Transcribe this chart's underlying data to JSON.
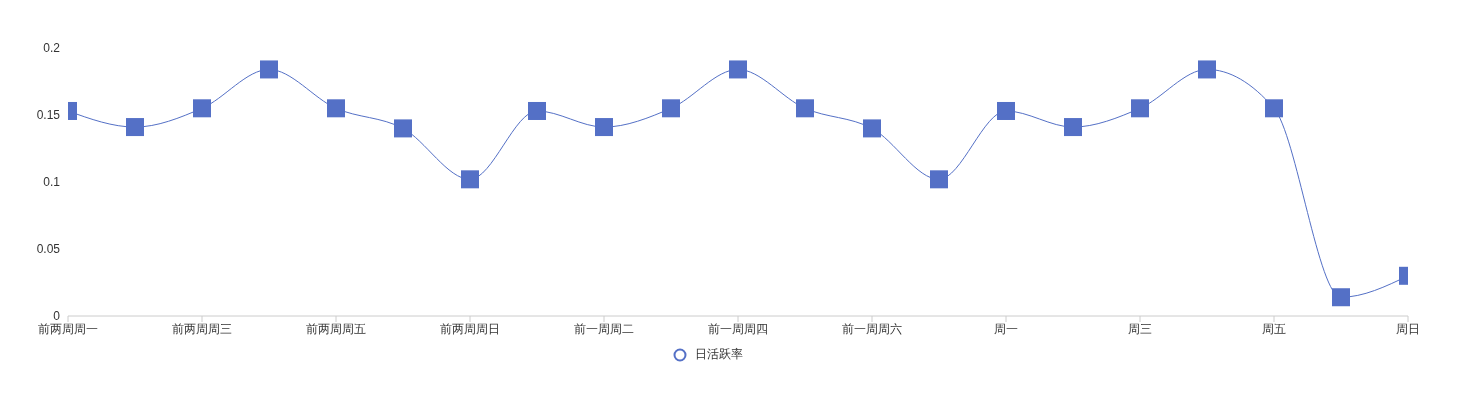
{
  "chart_data": {
    "type": "line",
    "categories": [
      "前两周周一",
      null,
      "前两周周三",
      null,
      "前两周周五",
      null,
      "前两周周日",
      null,
      "前一周周二",
      null,
      "前一周周四",
      null,
      "前一周周六",
      null,
      "周一",
      null,
      "周三",
      null,
      "周五",
      null,
      "周日"
    ],
    "series": [
      {
        "name": "日活跃率",
        "color": "#5470c6",
        "values": [
          0.153,
          0.141,
          0.155,
          0.184,
          0.155,
          0.14,
          0.102,
          0.153,
          0.141,
          0.155,
          0.184,
          0.155,
          0.14,
          0.102,
          0.153,
          0.141,
          0.155,
          0.184,
          0.155,
          0.014,
          0.03
        ]
      }
    ],
    "ylim": [
      0,
      0.2
    ],
    "yticks": [
      0,
      0.05,
      0.1,
      0.15,
      0.2
    ],
    "grid": false,
    "legend": "bottom",
    "marker": "square",
    "line_style": "solid"
  }
}
